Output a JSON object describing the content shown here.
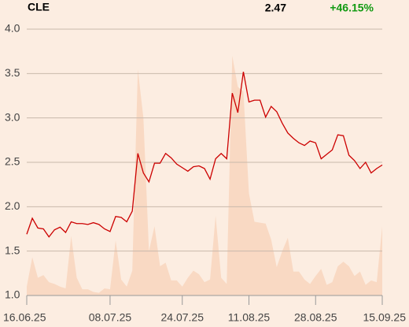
{
  "chart_data": {
    "type": "line",
    "symbol": "CLE",
    "last_price": "2.47",
    "change": "+46.15%",
    "background": "#fcede1",
    "price": {
      "color": "#cc0000",
      "values": [
        1.69,
        1.87,
        1.76,
        1.75,
        1.66,
        1.74,
        1.77,
        1.71,
        1.83,
        1.81,
        1.81,
        1.8,
        1.82,
        1.8,
        1.75,
        1.72,
        1.89,
        1.88,
        1.83,
        1.95,
        2.6,
        2.38,
        2.28,
        2.49,
        2.49,
        2.6,
        2.55,
        2.48,
        2.44,
        2.4,
        2.45,
        2.46,
        2.43,
        2.31,
        2.54,
        2.6,
        2.54,
        3.28,
        3.06,
        3.52,
        3.18,
        3.2,
        3.2,
        3.01,
        3.13,
        3.07,
        2.94,
        2.83,
        2.77,
        2.72,
        2.69,
        2.74,
        2.72,
        2.54,
        2.59,
        2.64,
        2.81,
        2.8,
        2.58,
        2.52,
        2.43,
        2.5,
        2.38,
        2.43,
        2.47
      ]
    },
    "volume": {
      "color": "#f9d9c3",
      "values": [
        1.1,
        1.43,
        1.2,
        1.23,
        1.15,
        1.13,
        1.1,
        1.08,
        1.67,
        1.2,
        1.07,
        1.07,
        1.04,
        1.03,
        1.08,
        1.07,
        1.62,
        1.18,
        1.1,
        1.28,
        3.55,
        3.0,
        1.5,
        1.78,
        1.33,
        1.37,
        1.17,
        1.17,
        1.1,
        1.2,
        1.28,
        1.24,
        1.15,
        1.18,
        1.9,
        1.2,
        1.13,
        3.7,
        3.35,
        3.3,
        2.15,
        1.83,
        1.82,
        1.81,
        1.63,
        1.32,
        1.5,
        1.65,
        1.27,
        1.27,
        1.18,
        1.13,
        1.22,
        1.3,
        1.12,
        1.15,
        1.33,
        1.38,
        1.33,
        1.22,
        1.27,
        1.12,
        1.17,
        1.15,
        1.78
      ]
    },
    "xlim": [
      0,
      64
    ],
    "xticks": [
      {
        "value": 0,
        "label": "16.06.25"
      },
      {
        "value": 15,
        "label": "08.07.25"
      },
      {
        "value": 28,
        "label": "24.07.25"
      },
      {
        "value": 40,
        "label": "11.08.25"
      },
      {
        "value": 52,
        "label": "28.08.25"
      },
      {
        "value": 64,
        "label": "15.09.25"
      }
    ],
    "ylim": [
      1.0,
      4.0
    ],
    "yticks": [
      {
        "value": 1.0,
        "label": "1.0"
      },
      {
        "value": 1.5,
        "label": "1.5"
      },
      {
        "value": 2.0,
        "label": "2.0"
      },
      {
        "value": 2.5,
        "label": "2.5"
      },
      {
        "value": 3.0,
        "label": "3.0"
      },
      {
        "value": 3.5,
        "label": "3.5"
      },
      {
        "value": 4.0,
        "label": "4.0"
      }
    ],
    "grid": true
  }
}
